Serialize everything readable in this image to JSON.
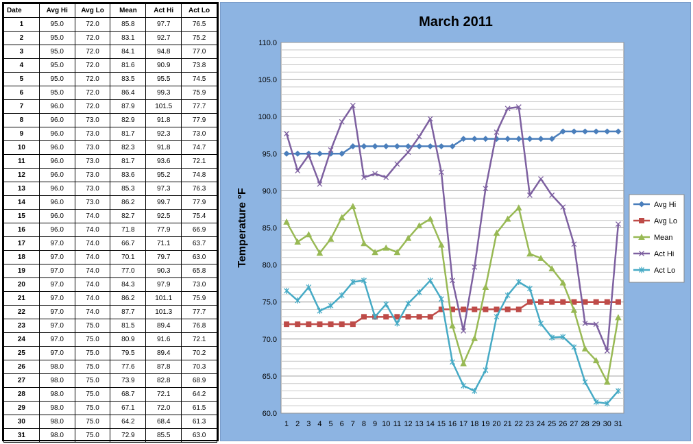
{
  "table": {
    "headers": [
      "Date",
      "Avg Hi",
      "Avg Lo",
      "Mean",
      "Act Hi",
      "Act Lo"
    ],
    "rows": [
      [
        "1",
        "95.0",
        "72.0",
        "85.8",
        "97.7",
        "76.5"
      ],
      [
        "2",
        "95.0",
        "72.0",
        "83.1",
        "92.7",
        "75.2"
      ],
      [
        "3",
        "95.0",
        "72.0",
        "84.1",
        "94.8",
        "77.0"
      ],
      [
        "4",
        "95.0",
        "72.0",
        "81.6",
        "90.9",
        "73.8"
      ],
      [
        "5",
        "95.0",
        "72.0",
        "83.5",
        "95.5",
        "74.5"
      ],
      [
        "6",
        "95.0",
        "72.0",
        "86.4",
        "99.3",
        "75.9"
      ],
      [
        "7",
        "96.0",
        "72.0",
        "87.9",
        "101.5",
        "77.7"
      ],
      [
        "8",
        "96.0",
        "73.0",
        "82.9",
        "91.8",
        "77.9"
      ],
      [
        "9",
        "96.0",
        "73.0",
        "81.7",
        "92.3",
        "73.0"
      ],
      [
        "10",
        "96.0",
        "73.0",
        "82.3",
        "91.8",
        "74.7"
      ],
      [
        "11",
        "96.0",
        "73.0",
        "81.7",
        "93.6",
        "72.1"
      ],
      [
        "12",
        "96.0",
        "73.0",
        "83.6",
        "95.2",
        "74.8"
      ],
      [
        "13",
        "96.0",
        "73.0",
        "85.3",
        "97.3",
        "76.3"
      ],
      [
        "14",
        "96.0",
        "73.0",
        "86.2",
        "99.7",
        "77.9"
      ],
      [
        "15",
        "96.0",
        "74.0",
        "82.7",
        "92.5",
        "75.4"
      ],
      [
        "16",
        "96.0",
        "74.0",
        "71.8",
        "77.9",
        "66.9"
      ],
      [
        "17",
        "97.0",
        "74.0",
        "66.7",
        "71.1",
        "63.7"
      ],
      [
        "18",
        "97.0",
        "74.0",
        "70.1",
        "79.7",
        "63.0"
      ],
      [
        "19",
        "97.0",
        "74.0",
        "77.0",
        "90.3",
        "65.8"
      ],
      [
        "20",
        "97.0",
        "74.0",
        "84.3",
        "97.9",
        "73.0"
      ],
      [
        "21",
        "97.0",
        "74.0",
        "86.2",
        "101.1",
        "75.9"
      ],
      [
        "22",
        "97.0",
        "74.0",
        "87.7",
        "101.3",
        "77.7"
      ],
      [
        "23",
        "97.0",
        "75.0",
        "81.5",
        "89.4",
        "76.8"
      ],
      [
        "24",
        "97.0",
        "75.0",
        "80.9",
        "91.6",
        "72.1"
      ],
      [
        "25",
        "97.0",
        "75.0",
        "79.5",
        "89.4",
        "70.2"
      ],
      [
        "26",
        "98.0",
        "75.0",
        "77.6",
        "87.8",
        "70.3"
      ],
      [
        "27",
        "98.0",
        "75.0",
        "73.9",
        "82.8",
        "68.9"
      ],
      [
        "28",
        "98.0",
        "75.0",
        "68.7",
        "72.1",
        "64.2"
      ],
      [
        "29",
        "98.0",
        "75.0",
        "67.1",
        "72.0",
        "61.5"
      ],
      [
        "30",
        "98.0",
        "75.0",
        "64.2",
        "68.4",
        "61.3"
      ],
      [
        "31",
        "98.0",
        "75.0",
        "72.9",
        "85.5",
        "63.0"
      ]
    ]
  },
  "chart_data": {
    "type": "line",
    "title": "March 2011",
    "ylabel": "Temperature °F",
    "xlabel": "",
    "ylim": [
      60,
      110
    ],
    "ystep": 5,
    "ytick_labels": [
      "60.0",
      "65.0",
      "70.0",
      "75.0",
      "80.0",
      "85.0",
      "90.0",
      "95.0",
      "100.0",
      "105.0",
      "110.0"
    ],
    "grid": true,
    "legend_position": "right",
    "x": [
      1,
      2,
      3,
      4,
      5,
      6,
      7,
      8,
      9,
      10,
      11,
      12,
      13,
      14,
      15,
      16,
      17,
      18,
      19,
      20,
      21,
      22,
      23,
      24,
      25,
      26,
      27,
      28,
      29,
      30,
      31
    ],
    "series": [
      {
        "name": "Avg Hi",
        "color": "#4a7ebb",
        "marker": "diamond",
        "values": [
          95,
          95,
          95,
          95,
          95,
          95,
          96,
          96,
          96,
          96,
          96,
          96,
          96,
          96,
          96,
          96,
          97,
          97,
          97,
          97,
          97,
          97,
          97,
          97,
          97,
          98,
          98,
          98,
          98,
          98,
          98
        ]
      },
      {
        "name": "Avg Lo",
        "color": "#be4b48",
        "marker": "square",
        "values": [
          72,
          72,
          72,
          72,
          72,
          72,
          72,
          73,
          73,
          73,
          73,
          73,
          73,
          73,
          74,
          74,
          74,
          74,
          74,
          74,
          74,
          74,
          75,
          75,
          75,
          75,
          75,
          75,
          75,
          75,
          75
        ]
      },
      {
        "name": "Mean",
        "color": "#98b954",
        "marker": "triangle",
        "values": [
          85.8,
          83.1,
          84.1,
          81.6,
          83.5,
          86.4,
          87.9,
          82.9,
          81.7,
          82.3,
          81.7,
          83.6,
          85.3,
          86.2,
          82.7,
          71.8,
          66.7,
          70.1,
          77.0,
          84.3,
          86.2,
          87.7,
          81.5,
          80.9,
          79.5,
          77.6,
          73.9,
          68.7,
          67.1,
          64.2,
          72.9
        ]
      },
      {
        "name": "Act Hi",
        "color": "#7d60a0",
        "marker": "x",
        "values": [
          97.7,
          92.7,
          94.8,
          90.9,
          95.5,
          99.3,
          101.5,
          91.8,
          92.3,
          91.8,
          93.6,
          95.2,
          97.3,
          99.7,
          92.5,
          77.9,
          71.1,
          79.7,
          90.3,
          97.9,
          101.1,
          101.3,
          89.4,
          91.6,
          89.4,
          87.8,
          82.8,
          72.1,
          72.0,
          68.4,
          85.5
        ]
      },
      {
        "name": "Act Lo",
        "color": "#46aac5",
        "marker": "star",
        "values": [
          76.5,
          75.2,
          77.0,
          73.8,
          74.5,
          75.9,
          77.7,
          77.9,
          73.0,
          74.7,
          72.1,
          74.8,
          76.3,
          77.9,
          75.4,
          66.9,
          63.7,
          63.0,
          65.8,
          73.0,
          75.9,
          77.7,
          76.8,
          72.1,
          70.2,
          70.3,
          68.9,
          64.2,
          61.5,
          61.3,
          63.0
        ]
      }
    ]
  }
}
